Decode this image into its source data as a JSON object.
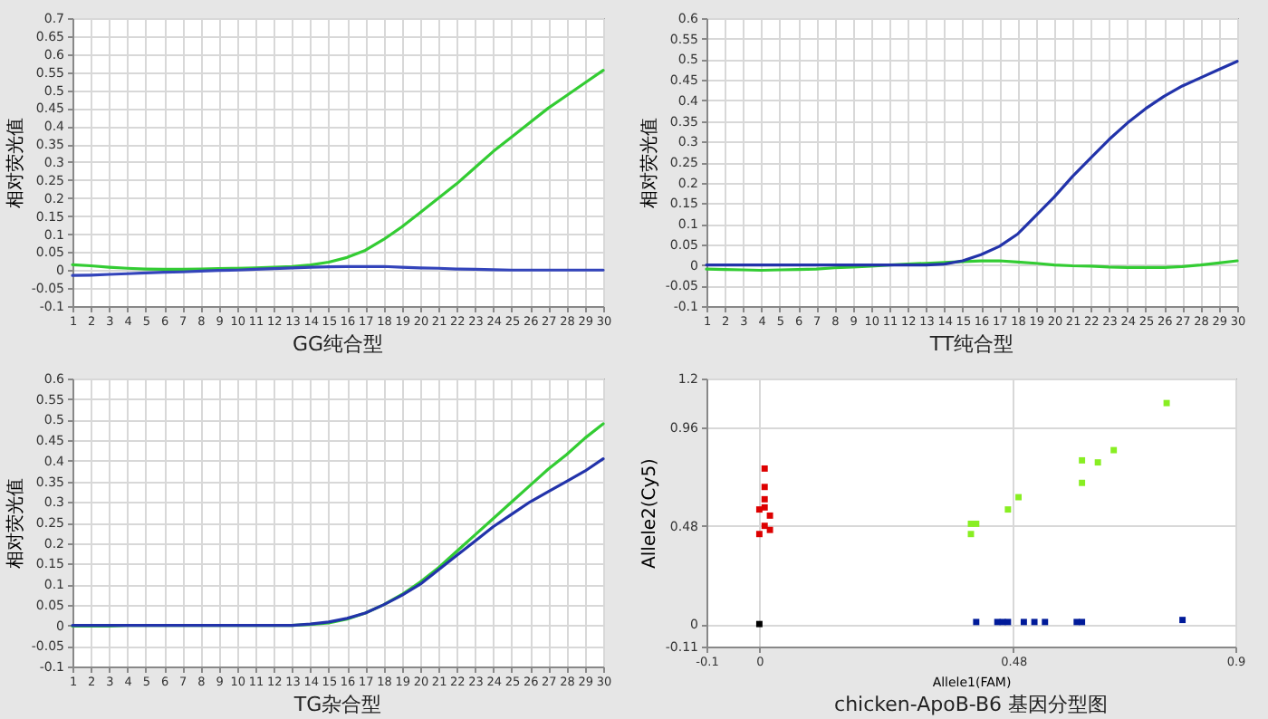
{
  "chart_data": [
    {
      "type": "line",
      "title": "GG纯合型",
      "ylabel": "相对荧光值",
      "x": [
        1,
        2,
        3,
        4,
        5,
        6,
        7,
        8,
        9,
        10,
        11,
        12,
        13,
        14,
        15,
        16,
        17,
        18,
        19,
        20,
        21,
        22,
        23,
        24,
        25,
        26,
        27,
        28,
        29,
        30
      ],
      "xlim": [
        1,
        30
      ],
      "xticks": [
        1,
        2,
        3,
        4,
        5,
        6,
        7,
        8,
        9,
        10,
        11,
        12,
        13,
        14,
        15,
        16,
        17,
        18,
        19,
        20,
        21,
        22,
        23,
        24,
        25,
        26,
        27,
        28,
        29,
        30
      ],
      "ylim": [
        -0.1,
        0.7
      ],
      "yticks": [
        -0.1,
        -0.05,
        0,
        0.05,
        0.1,
        0.15,
        0.2,
        0.25,
        0.3,
        0.35,
        0.4,
        0.45,
        0.5,
        0.55,
        0.6,
        0.65,
        0.7
      ],
      "grid": true,
      "series": [
        {
          "color": "#33cc33",
          "values": [
            0.015,
            0.012,
            0.008,
            0.005,
            0.003,
            0.002,
            0.002,
            0.003,
            0.004,
            0.005,
            0.006,
            0.008,
            0.01,
            0.014,
            0.022,
            0.035,
            0.055,
            0.085,
            0.12,
            0.16,
            0.2,
            0.24,
            0.285,
            0.33,
            0.37,
            0.41,
            0.45,
            0.485,
            0.52,
            0.555
          ]
        },
        {
          "color": "#3344bb",
          "values": [
            -0.015,
            -0.014,
            -0.012,
            -0.01,
            -0.008,
            -0.006,
            -0.005,
            -0.003,
            -0.001,
            0,
            0.002,
            0.004,
            0.006,
            0.008,
            0.009,
            0.01,
            0.01,
            0.01,
            0.008,
            0.006,
            0.005,
            0.003,
            0.002,
            0.001,
            0,
            0,
            0,
            0,
            0,
            0
          ]
        }
      ]
    },
    {
      "type": "line",
      "title": "TT纯合型",
      "ylabel": "相对荧光值",
      "x": [
        1,
        2,
        3,
        4,
        5,
        6,
        7,
        8,
        9,
        10,
        11,
        12,
        13,
        14,
        15,
        16,
        17,
        18,
        19,
        20,
        21,
        22,
        23,
        24,
        25,
        26,
        27,
        28,
        29,
        30
      ],
      "xlim": [
        1,
        30
      ],
      "xticks": [
        1,
        2,
        3,
        4,
        5,
        6,
        7,
        8,
        9,
        10,
        11,
        12,
        13,
        14,
        15,
        16,
        17,
        18,
        19,
        20,
        21,
        22,
        23,
        24,
        25,
        26,
        27,
        28,
        29,
        30
      ],
      "ylim": [
        -0.1,
        0.6
      ],
      "yticks": [
        -0.1,
        -0.05,
        0,
        0.05,
        0.1,
        0.15,
        0.2,
        0.25,
        0.3,
        0.35,
        0.4,
        0.45,
        0.5,
        0.55,
        0.6
      ],
      "grid": true,
      "series": [
        {
          "color": "#33cc33",
          "values": [
            -0.01,
            -0.011,
            -0.012,
            -0.013,
            -0.012,
            -0.011,
            -0.01,
            -0.007,
            -0.005,
            -0.003,
            0,
            0.002,
            0.004,
            0.006,
            0.008,
            0.01,
            0.01,
            0.007,
            0.004,
            0,
            -0.002,
            -0.003,
            -0.005,
            -0.006,
            -0.006,
            -0.006,
            -0.004,
            0,
            0.005,
            0.01
          ]
        },
        {
          "color": "#2233aa",
          "values": [
            0,
            0,
            0,
            0,
            0,
            0,
            0,
            0,
            0,
            0,
            0,
            0,
            0,
            0.002,
            0.01,
            0.025,
            0.045,
            0.075,
            0.12,
            0.165,
            0.215,
            0.26,
            0.305,
            0.345,
            0.38,
            0.41,
            0.435,
            0.455,
            0.475,
            0.495
          ]
        }
      ]
    },
    {
      "type": "line",
      "title": "TG杂合型",
      "ylabel": "相对荧光值",
      "x": [
        1,
        2,
        3,
        4,
        5,
        6,
        7,
        8,
        9,
        10,
        11,
        12,
        13,
        14,
        15,
        16,
        17,
        18,
        19,
        20,
        21,
        22,
        23,
        24,
        25,
        26,
        27,
        28,
        29,
        30
      ],
      "xlim": [
        1,
        30
      ],
      "xticks": [
        1,
        2,
        3,
        4,
        5,
        6,
        7,
        8,
        9,
        10,
        11,
        12,
        13,
        14,
        15,
        16,
        17,
        18,
        19,
        20,
        21,
        22,
        23,
        24,
        25,
        26,
        27,
        28,
        29,
        30
      ],
      "ylim": [
        -0.1,
        0.6
      ],
      "yticks": [
        -0.1,
        -0.05,
        0,
        0.05,
        0.1,
        0.15,
        0.2,
        0.25,
        0.3,
        0.35,
        0.4,
        0.45,
        0.5,
        0.55,
        0.6
      ],
      "grid": true,
      "series": [
        {
          "color": "#33cc33",
          "values": [
            -0.002,
            -0.002,
            -0.002,
            0,
            0,
            0,
            0,
            0,
            0,
            0,
            0,
            0,
            0,
            0.002,
            0.006,
            0.015,
            0.03,
            0.05,
            0.075,
            0.105,
            0.14,
            0.18,
            0.22,
            0.26,
            0.3,
            0.34,
            0.38,
            0.415,
            0.455,
            0.49
          ]
        },
        {
          "color": "#2233aa",
          "values": [
            0,
            0,
            0,
            0,
            0,
            0,
            0,
            0,
            0,
            0,
            0,
            0,
            0,
            0.003,
            0.008,
            0.017,
            0.03,
            0.05,
            0.073,
            0.1,
            0.135,
            0.17,
            0.205,
            0.24,
            0.27,
            0.3,
            0.325,
            0.35,
            0.375,
            0.405
          ]
        }
      ]
    },
    {
      "type": "scatter",
      "title": "chicken-ApoB-B6 基因分型图",
      "xlabel": "Allele1(FAM)",
      "ylabel": "Allele2(Cy5)",
      "xlim": [
        -0.1,
        0.9
      ],
      "xticks": [
        -0.1,
        0,
        0.48,
        0.9
      ],
      "ylim": [
        -0.11,
        1.2
      ],
      "yticks": [
        -0.11,
        0,
        0.48,
        0.96,
        1.2
      ],
      "grid": true,
      "marker": "square",
      "series": [
        {
          "color": "#dd0000",
          "x": [
            0.01,
            0.01,
            0.01,
            0.01,
            0,
            0.02,
            0.01,
            0.02,
            0
          ],
          "values": [
            0.76,
            0.67,
            0.61,
            0.57,
            0.56,
            0.53,
            0.48,
            0.46,
            0.44
          ]
        },
        {
          "color": "#88ee22",
          "x": [
            0.4,
            0.41,
            0.4,
            0.47,
            0.49,
            0.61,
            0.61,
            0.64,
            0.67,
            0.77
          ],
          "values": [
            0.49,
            0.49,
            0.44,
            0.56,
            0.62,
            0.8,
            0.69,
            0.79,
            0.85,
            1.08
          ]
        },
        {
          "color": "#001a99",
          "x": [
            0.41,
            0.45,
            0.46,
            0.47,
            0.5,
            0.52,
            0.54,
            0.6,
            0.61,
            0.8
          ],
          "values": [
            0.01,
            0.01,
            0.01,
            0.01,
            0.01,
            0.01,
            0.01,
            0.01,
            0.01,
            0.02
          ]
        },
        {
          "color": "#000000",
          "x": [
            0
          ],
          "values": [
            0
          ]
        }
      ]
    }
  ]
}
